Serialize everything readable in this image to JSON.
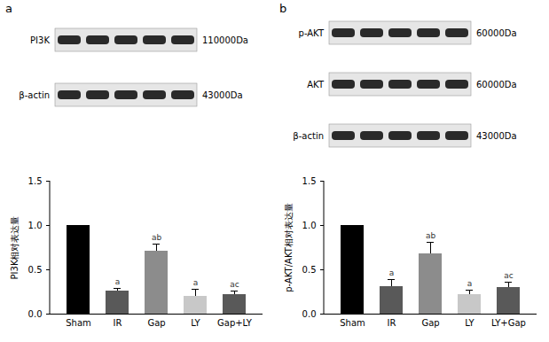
{
  "chart_data": [
    {
      "type": "bar",
      "panel": "a",
      "blots": [
        {
          "label": "PI3K",
          "size": "110000Da"
        },
        {
          "label": "β-actin",
          "size": "43000Da"
        }
      ],
      "ylabel": "PI3K相对表达量",
      "categories": [
        "Sham",
        "IR",
        "Gap",
        "LY",
        "Gap+LY"
      ],
      "values": [
        1.0,
        0.26,
        0.71,
        0.2,
        0.22
      ],
      "errors": [
        0,
        0.03,
        0.08,
        0.08,
        0.04
      ],
      "significance": [
        null,
        "a",
        "ab",
        "a",
        "ac"
      ],
      "colors": [
        "#000000",
        "#595959",
        "#8c8c8c",
        "#c8c8c8",
        "#595959"
      ],
      "ylim": [
        0,
        1.5
      ],
      "yticks": [
        {
          "value": 0,
          "label": "0.0"
        },
        {
          "value": 0.5,
          "label": "0.5"
        },
        {
          "value": 1,
          "label": "1.0"
        },
        {
          "value": 1.5,
          "label": "1.5"
        }
      ]
    },
    {
      "type": "bar",
      "panel": "b",
      "blots": [
        {
          "label": "p-AKT",
          "size": "60000Da"
        },
        {
          "label": "AKT",
          "size": "60000Da"
        },
        {
          "label": "β-actin",
          "size": "43000Da"
        }
      ],
      "ylabel": "p-AKT/AKT相对表达量",
      "categories": [
        "Sham",
        "IR",
        "Gap",
        "LY",
        "LY+Gap"
      ],
      "values": [
        1.0,
        0.31,
        0.68,
        0.22,
        0.3
      ],
      "errors": [
        0,
        0.08,
        0.13,
        0.05,
        0.06
      ],
      "significance": [
        null,
        "a",
        "ab",
        "a",
        "ac"
      ],
      "colors": [
        "#000000",
        "#595959",
        "#8c8c8c",
        "#c8c8c8",
        "#595959"
      ],
      "ylim": [
        0,
        1.5
      ],
      "yticks": [
        {
          "value": 0,
          "label": "0.0"
        },
        {
          "value": 0.5,
          "label": "0.5"
        },
        {
          "value": 1,
          "label": "1.0"
        },
        {
          "value": 1.5,
          "label": "1.5"
        }
      ]
    }
  ]
}
